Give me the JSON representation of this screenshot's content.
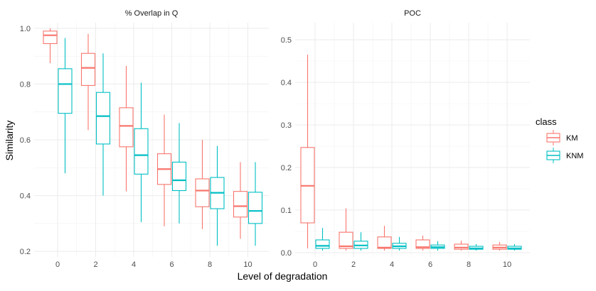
{
  "chart_data": {
    "type": "boxplot",
    "xlabel": "Level of degradation",
    "ylabel": "Similarity",
    "grid": true,
    "legend": {
      "title": "class",
      "placement": "right",
      "entries": [
        {
          "name": "KM",
          "color": "#F8766D"
        },
        {
          "name": "KNM",
          "color": "#00BFC4"
        }
      ]
    },
    "x_ticks": [
      0,
      2,
      4,
      6,
      8,
      10
    ],
    "panels": [
      {
        "title": "% Overlap in Q",
        "ylim": [
          0.18,
          1.02
        ],
        "y_ticks": [
          0.2,
          0.4,
          0.6,
          0.8,
          1.0
        ],
        "y_tick_labels": [
          "0.2",
          "0.4",
          "0.6",
          "0.8",
          "1.0"
        ],
        "series": [
          {
            "name": "KM",
            "boxes": [
              {
                "x": 0,
                "min": 0.875,
                "q1": 0.945,
                "median": 0.975,
                "q3": 0.99,
                "max": 1.0
              },
              {
                "x": 2,
                "min": 0.635,
                "q1": 0.795,
                "median": 0.858,
                "q3": 0.91,
                "max": 0.98
              },
              {
                "x": 4,
                "min": 0.415,
                "q1": 0.575,
                "median": 0.65,
                "q3": 0.715,
                "max": 0.865
              },
              {
                "x": 6,
                "min": 0.29,
                "q1": 0.44,
                "median": 0.495,
                "q3": 0.55,
                "max": 0.69
              },
              {
                "x": 8,
                "min": 0.28,
                "q1": 0.36,
                "median": 0.418,
                "q3": 0.46,
                "max": 0.6
              },
              {
                "x": 10,
                "min": 0.245,
                "q1": 0.323,
                "median": 0.362,
                "q3": 0.415,
                "max": 0.52
              }
            ]
          },
          {
            "name": "KNM",
            "boxes": [
              {
                "x": 0,
                "min": 0.48,
                "q1": 0.695,
                "median": 0.8,
                "q3": 0.855,
                "max": 0.965
              },
              {
                "x": 2,
                "min": 0.4,
                "q1": 0.585,
                "median": 0.685,
                "q3": 0.77,
                "max": 0.91
              },
              {
                "x": 4,
                "min": 0.305,
                "q1": 0.477,
                "median": 0.545,
                "q3": 0.64,
                "max": 0.805
              },
              {
                "x": 6,
                "min": 0.3,
                "q1": 0.418,
                "median": 0.455,
                "q3": 0.52,
                "max": 0.66
              },
              {
                "x": 8,
                "min": 0.22,
                "q1": 0.353,
                "median": 0.41,
                "q3": 0.465,
                "max": 0.578
              },
              {
                "x": 10,
                "min": 0.22,
                "q1": 0.3,
                "median": 0.345,
                "q3": 0.412,
                "max": 0.52
              }
            ]
          }
        ]
      },
      {
        "title": "POC",
        "ylim": [
          -0.01,
          0.54
        ],
        "y_ticks": [
          0.0,
          0.1,
          0.2,
          0.3,
          0.4,
          0.5
        ],
        "y_tick_labels": [
          "0.0",
          "0.1",
          "0.2",
          "0.3",
          "0.4",
          "0.5"
        ],
        "series": [
          {
            "name": "KM",
            "boxes": [
              {
                "x": 0,
                "min": 0.01,
                "q1": 0.07,
                "median": 0.157,
                "q3": 0.247,
                "max": 0.465
              },
              {
                "x": 2,
                "min": 0.005,
                "q1": 0.01,
                "median": 0.015,
                "q3": 0.048,
                "max": 0.104
              },
              {
                "x": 4,
                "min": 0.005,
                "q1": 0.01,
                "median": 0.012,
                "q3": 0.037,
                "max": 0.063
              },
              {
                "x": 6,
                "min": 0.005,
                "q1": 0.01,
                "median": 0.013,
                "q3": 0.03,
                "max": 0.04
              },
              {
                "x": 8,
                "min": 0.005,
                "q1": 0.008,
                "median": 0.012,
                "q3": 0.02,
                "max": 0.028
              },
              {
                "x": 10,
                "min": 0.005,
                "q1": 0.008,
                "median": 0.012,
                "q3": 0.018,
                "max": 0.025
              }
            ]
          },
          {
            "name": "KNM",
            "boxes": [
              {
                "x": 0,
                "min": 0.005,
                "q1": 0.01,
                "median": 0.016,
                "q3": 0.03,
                "max": 0.058
              },
              {
                "x": 2,
                "min": 0.005,
                "q1": 0.01,
                "median": 0.017,
                "q3": 0.027,
                "max": 0.048
              },
              {
                "x": 4,
                "min": 0.005,
                "q1": 0.01,
                "median": 0.015,
                "q3": 0.022,
                "max": 0.037
              },
              {
                "x": 6,
                "min": 0.005,
                "q1": 0.01,
                "median": 0.013,
                "q3": 0.018,
                "max": 0.027
              },
              {
                "x": 8,
                "min": 0.005,
                "q1": 0.008,
                "median": 0.01,
                "q3": 0.015,
                "max": 0.02
              },
              {
                "x": 10,
                "min": 0.005,
                "q1": 0.008,
                "median": 0.01,
                "q3": 0.015,
                "max": 0.02
              }
            ]
          }
        ]
      }
    ]
  }
}
